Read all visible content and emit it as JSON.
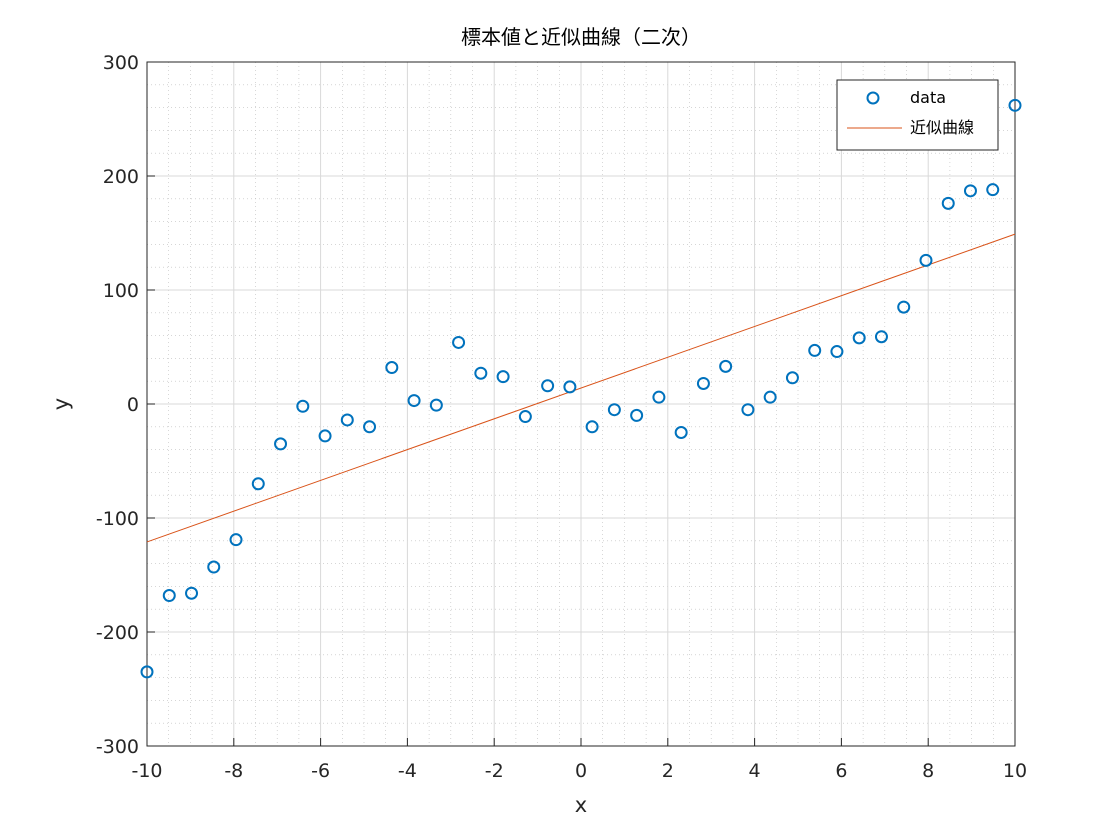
{
  "chart_data": {
    "type": "scatter",
    "title": "標本値と近似曲線（二次）",
    "xlabel": "x",
    "ylabel": "y",
    "xlim": [
      -10,
      10
    ],
    "ylim": [
      -300,
      300
    ],
    "xticks": [
      "-10",
      "-8",
      "-6",
      "-4",
      "-2",
      "0",
      "2",
      "4",
      "6",
      "8",
      "10"
    ],
    "yticks": [
      "-300",
      "-200",
      "-100",
      "0",
      "100",
      "200",
      "300"
    ],
    "grid": true,
    "minor_grid": true,
    "legend_position": "top-right",
    "series": [
      {
        "name": "data",
        "kind": "scatter",
        "marker": "circle",
        "color": "#0072BD",
        "x": [
          -10.0,
          -9.487,
          -8.974,
          -8.462,
          -7.949,
          -7.436,
          -6.923,
          -6.41,
          -5.897,
          -5.385,
          -4.872,
          -4.359,
          -3.846,
          -3.333,
          -2.821,
          -2.308,
          -1.795,
          -1.282,
          -0.769,
          -0.256,
          0.256,
          0.769,
          1.282,
          1.795,
          2.308,
          2.821,
          3.333,
          3.846,
          4.359,
          4.872,
          5.385,
          5.897,
          6.41,
          6.923,
          7.436,
          7.949,
          8.462,
          8.974,
          9.487,
          10.0
        ],
        "y": [
          -235,
          -168,
          -166,
          -143,
          -119,
          -70,
          -35,
          -2,
          -28,
          -14,
          -20,
          32,
          3,
          -1,
          54,
          27,
          24,
          -11,
          16,
          15,
          -20,
          -5,
          -10,
          6,
          -25,
          18,
          33,
          -5,
          6,
          23,
          47,
          46,
          58,
          59,
          85,
          126,
          176,
          187,
          188,
          262
        ]
      },
      {
        "name": "近似曲線",
        "kind": "line",
        "color": "#D95319",
        "x": [
          -10,
          10
        ],
        "y": [
          -121,
          149
        ]
      }
    ]
  }
}
